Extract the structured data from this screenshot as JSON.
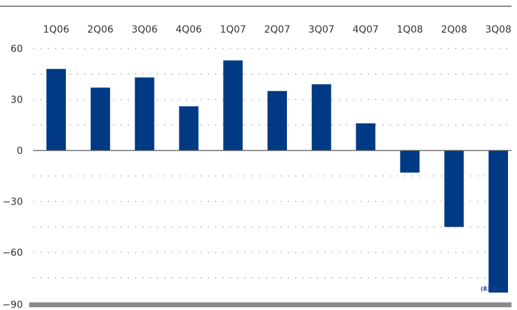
{
  "chart_data": {
    "type": "bar",
    "categories": [
      "1Q06",
      "2Q06",
      "3Q06",
      "4Q06",
      "1Q07",
      "2Q07",
      "3Q07",
      "4Q07",
      "1Q08",
      "2Q08",
      "3Q08"
    ],
    "values": [
      48,
      37,
      43,
      26,
      53,
      35,
      39,
      16,
      -13,
      -45,
      -83.6
    ],
    "data_labels": [
      {
        "category": "3Q08",
        "text": "(83.6)"
      }
    ],
    "yticks": [
      60,
      30,
      0,
      -30,
      -60,
      -90
    ],
    "yticklabels": [
      "60",
      "30",
      "0",
      "−30",
      "−60",
      "−90"
    ],
    "ylim": [
      -90,
      60
    ],
    "grid": "dotted horizontal",
    "xaxis_position": "top",
    "legend": "none",
    "title": "",
    "xlabel": "",
    "ylabel": "",
    "colors": {
      "bar": "#003a84",
      "grid": "#9a9a9a",
      "zero_line": "#555555",
      "bottom_bar": "#8a8a8a",
      "top_border": "#888888",
      "data_label": "#1c3f94"
    }
  }
}
